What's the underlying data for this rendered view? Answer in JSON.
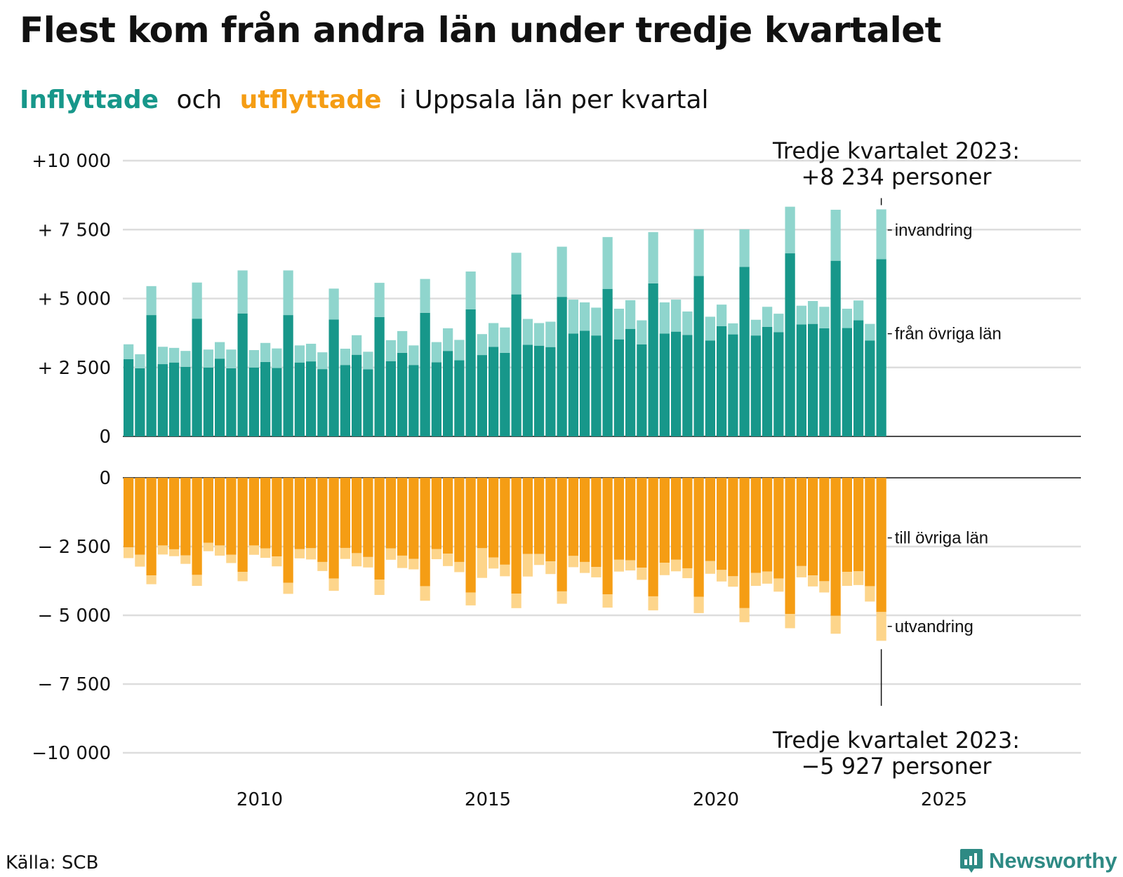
{
  "title": "Flest kom från andra län under tredje kvartalet",
  "subtitle": {
    "inflyttade": "Inflyttade",
    "och": "och",
    "utflyttade": "utflyttade",
    "rest": "i Uppsala län per kvartal"
  },
  "colors": {
    "in_domestic": "#17978a",
    "in_immigration": "#8fd5cd",
    "out_domestic": "#f59d14",
    "out_emigration": "#fdd58b",
    "gridline": "#dddddd",
    "baseline": "#111111",
    "brand": "#2e8a84"
  },
  "chart_data": {
    "type": "bar",
    "stacked": true,
    "x_unit": "kvartal",
    "x_start": "2007 Q1",
    "x_end": "2023 Q3",
    "x_ticks": [
      "2010",
      "2015",
      "2020",
      "2025"
    ],
    "x_range": [
      2007.0,
      2028.0
    ],
    "upper_panel": {
      "y_ticks": [
        "+10 000",
        "+ 7 500",
        "+ 5 000",
        "+ 2 500",
        "0"
      ],
      "ylim": [
        0,
        10000
      ],
      "series": [
        {
          "name": "från övriga län",
          "values": [
            2800,
            2470,
            4400,
            2620,
            2680,
            2520,
            4270,
            2500,
            2820,
            2470,
            4460,
            2500,
            2700,
            2480,
            4400,
            2680,
            2720,
            2440,
            4240,
            2590,
            2960,
            2430,
            4330,
            2730,
            3030,
            2590,
            4480,
            2690,
            3100,
            2760,
            4610,
            2950,
            3250,
            3030,
            5150,
            3320,
            3290,
            3240,
            5060,
            3730,
            3830,
            3660,
            5350,
            3520,
            3900,
            3340,
            5550,
            3730,
            3800,
            3680,
            5820,
            3480,
            4000,
            3700,
            6150,
            3660,
            3970,
            3780,
            6640,
            4060,
            4080,
            3920,
            6370,
            3930,
            4210,
            3480,
            6430
          ]
        },
        {
          "name": "invandring",
          "values": [
            540,
            510,
            1050,
            630,
            530,
            580,
            1310,
            650,
            600,
            680,
            1560,
            630,
            690,
            710,
            1620,
            620,
            640,
            610,
            1120,
            590,
            710,
            640,
            1240,
            760,
            790,
            710,
            1230,
            730,
            820,
            740,
            1370,
            760,
            860,
            920,
            1510,
            940,
            820,
            920,
            1820,
            1230,
            1030,
            1010,
            1880,
            1110,
            1040,
            870,
            1860,
            1130,
            1160,
            850,
            1690,
            860,
            780,
            400,
            1360,
            570,
            730,
            670,
            1690,
            680,
            830,
            780,
            1850,
            700,
            720,
            600,
            1804
          ]
        }
      ]
    },
    "lower_panel": {
      "y_ticks": [
        "0",
        "− 2 500",
        "− 5 000",
        "− 7 500",
        "−10 000"
      ],
      "ylim": [
        -10000,
        0
      ],
      "series": [
        {
          "name": "till övriga län",
          "values": [
            -2530,
            -2800,
            -3550,
            -2460,
            -2600,
            -2820,
            -3530,
            -2360,
            -2460,
            -2800,
            -3420,
            -2460,
            -2570,
            -2860,
            -3820,
            -2590,
            -2560,
            -3060,
            -3660,
            -2550,
            -2740,
            -2880,
            -3700,
            -2570,
            -2830,
            -2950,
            -3940,
            -2590,
            -2760,
            -3060,
            -4170,
            -2560,
            -2900,
            -3160,
            -4210,
            -2770,
            -2770,
            -3040,
            -4130,
            -2840,
            -3060,
            -3240,
            -4240,
            -2980,
            -3000,
            -3270,
            -4310,
            -3090,
            -2980,
            -3290,
            -4330,
            -3030,
            -3350,
            -3580,
            -4740,
            -3460,
            -3410,
            -3660,
            -4950,
            -3210,
            -3550,
            -3760,
            -5020,
            -3420,
            -3400,
            -3940,
            -4880
          ]
        },
        {
          "name": "utvandring",
          "values": [
            -390,
            -430,
            -320,
            -330,
            -250,
            -310,
            -400,
            -310,
            -370,
            -300,
            -340,
            -340,
            -340,
            -360,
            -400,
            -340,
            -410,
            -330,
            -450,
            -400,
            -480,
            -380,
            -560,
            -410,
            -450,
            -380,
            -530,
            -370,
            -450,
            -370,
            -470,
            -1080,
            -400,
            -420,
            -530,
            -820,
            -400,
            -460,
            -450,
            -410,
            -400,
            -380,
            -480,
            -430,
            -370,
            -440,
            -510,
            -450,
            -420,
            -360,
            -590,
            -460,
            -420,
            -380,
            -510,
            -470,
            -440,
            -480,
            -520,
            -410,
            -400,
            -410,
            -650,
            -510,
            -500,
            -560,
            -1047
          ]
        }
      ]
    },
    "series_labels": {
      "invandring": "invandring",
      "fran_ovriga_lan": "från övriga län",
      "till_ovriga_lan": "till övriga län",
      "utvandring": "utvandring"
    },
    "annotations": {
      "upper_line1": "Tredje kvartalet 2023:",
      "upper_line2": "+8 234 personer",
      "lower_line1": "Tredje kvartalet 2023:",
      "lower_line2": "−5 927 personer"
    }
  },
  "source": "Källa: SCB",
  "brand": "Newsworthy",
  "brand_icon": "bar-chart-bubble-icon"
}
